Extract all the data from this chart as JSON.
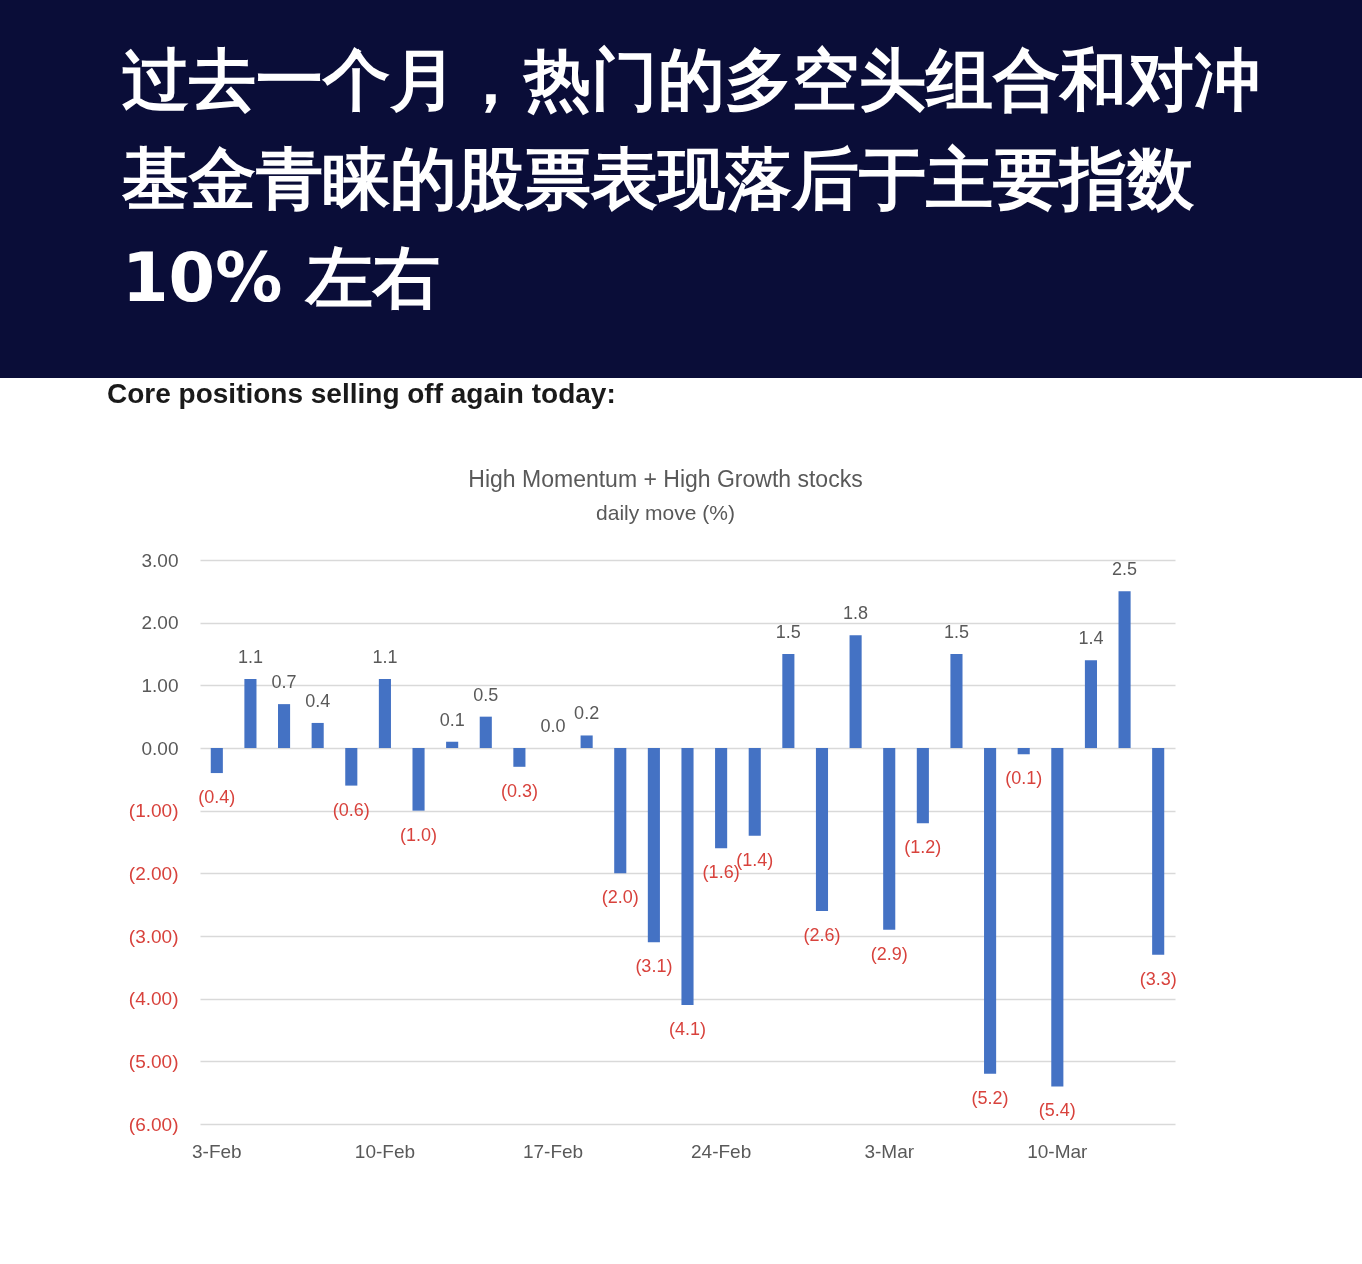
{
  "chart_data": {
    "type": "bar",
    "title": "High Momentum + High Growth stocks",
    "subtitle": "daily move (%)",
    "annotations": [
      "过去一个月，热门的多空头组合和对冲基金青睐的股票表现落后于主要指数10% 左右",
      "Core positions selling off again today:"
    ],
    "categories": [
      "3-Feb",
      null,
      null,
      null,
      null,
      "10-Feb",
      null,
      null,
      null,
      null,
      "17-Feb",
      null,
      null,
      null,
      null,
      "24-Feb",
      null,
      null,
      null,
      null,
      "3-Mar",
      null,
      null,
      null,
      null,
      "10-Mar",
      null,
      null,
      null
    ],
    "values": [
      -0.4,
      1.1,
      0.7,
      0.4,
      -0.6,
      1.1,
      -1.0,
      0.1,
      0.5,
      -0.3,
      0.0,
      0.2,
      -2.0,
      -3.1,
      -4.1,
      -1.6,
      -1.4,
      1.5,
      -2.6,
      1.8,
      -2.9,
      -1.2,
      1.5,
      -5.2,
      -0.1,
      -5.4,
      1.4,
      2.5,
      -3.3
    ],
    "value_labels": [
      "(0.4)",
      "1.1",
      "0.7",
      "0.4",
      "(0.6)",
      "1.1",
      "(1.0)",
      "0.1",
      "0.5",
      "(0.3)",
      "0.0",
      "0.2",
      "(2.0)",
      "(3.1)",
      "(4.1)",
      "(1.6)",
      "(1.4)",
      "1.5",
      "(2.6)",
      "1.8",
      "(2.9)",
      "(1.2)",
      "1.5",
      "(5.2)",
      "(0.1)",
      "(5.4)",
      "1.4",
      "2.5",
      "(3.3)"
    ],
    "color": "#4472c4",
    "ylim": [
      -6,
      3
    ],
    "yticks": [
      {
        "value": 3,
        "label": "3.00"
      },
      {
        "value": 2,
        "label": "2.00"
      },
      {
        "value": 1,
        "label": "1.00"
      },
      {
        "value": 0,
        "label": "0.00"
      },
      {
        "value": -1,
        "label": "(1.00)"
      },
      {
        "value": -2,
        "label": "(2.00)"
      },
      {
        "value": -3,
        "label": "(3.00)"
      },
      {
        "value": -4,
        "label": "(4.00)"
      },
      {
        "value": -5,
        "label": "(5.00)"
      },
      {
        "value": -6,
        "label": "(6.00)"
      }
    ],
    "grid": "y"
  }
}
